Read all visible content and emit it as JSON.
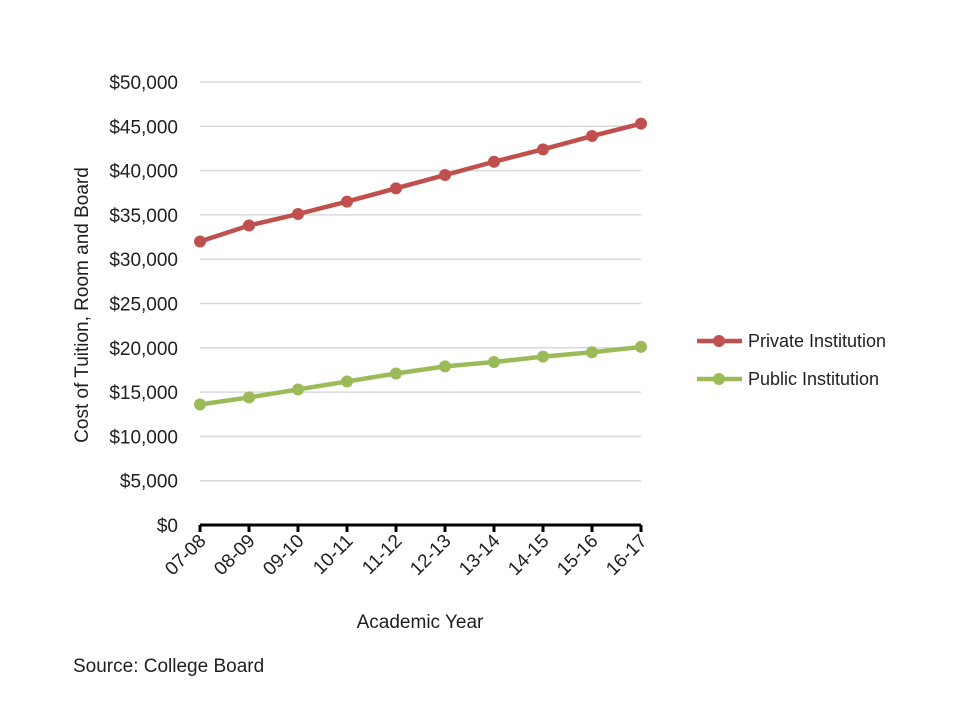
{
  "chart_data": {
    "type": "line",
    "title": "",
    "xlabel": "Academic Year",
    "ylabel": "Cost of Tuition, Room and Board",
    "categories": [
      "07-08",
      "08-09",
      "09-10",
      "10-11",
      "11-12",
      "12-13",
      "13-14",
      "14-15",
      "15-16",
      "16-17"
    ],
    "ylim": [
      0,
      50000
    ],
    "yticks": [
      0,
      5000,
      10000,
      15000,
      20000,
      25000,
      30000,
      35000,
      40000,
      45000,
      50000
    ],
    "ytick_labels": [
      "$0",
      "$5,000",
      "$10,000",
      "$15,000",
      "$20,000",
      "$25,000",
      "$30,000",
      "$35,000",
      "$40,000",
      "$45,000",
      "$50,000"
    ],
    "grid": true,
    "legend_position": "right",
    "series": [
      {
        "name": "Private Institution",
        "color": "#c0504d",
        "values": [
          32000,
          33800,
          35100,
          36500,
          38000,
          39500,
          41000,
          42400,
          43900,
          45300
        ]
      },
      {
        "name": "Public Institution",
        "color": "#9bbb59",
        "values": [
          13600,
          14400,
          15300,
          16200,
          17100,
          17900,
          18400,
          19000,
          19500,
          20100
        ]
      }
    ]
  },
  "source": "Source: College Board"
}
